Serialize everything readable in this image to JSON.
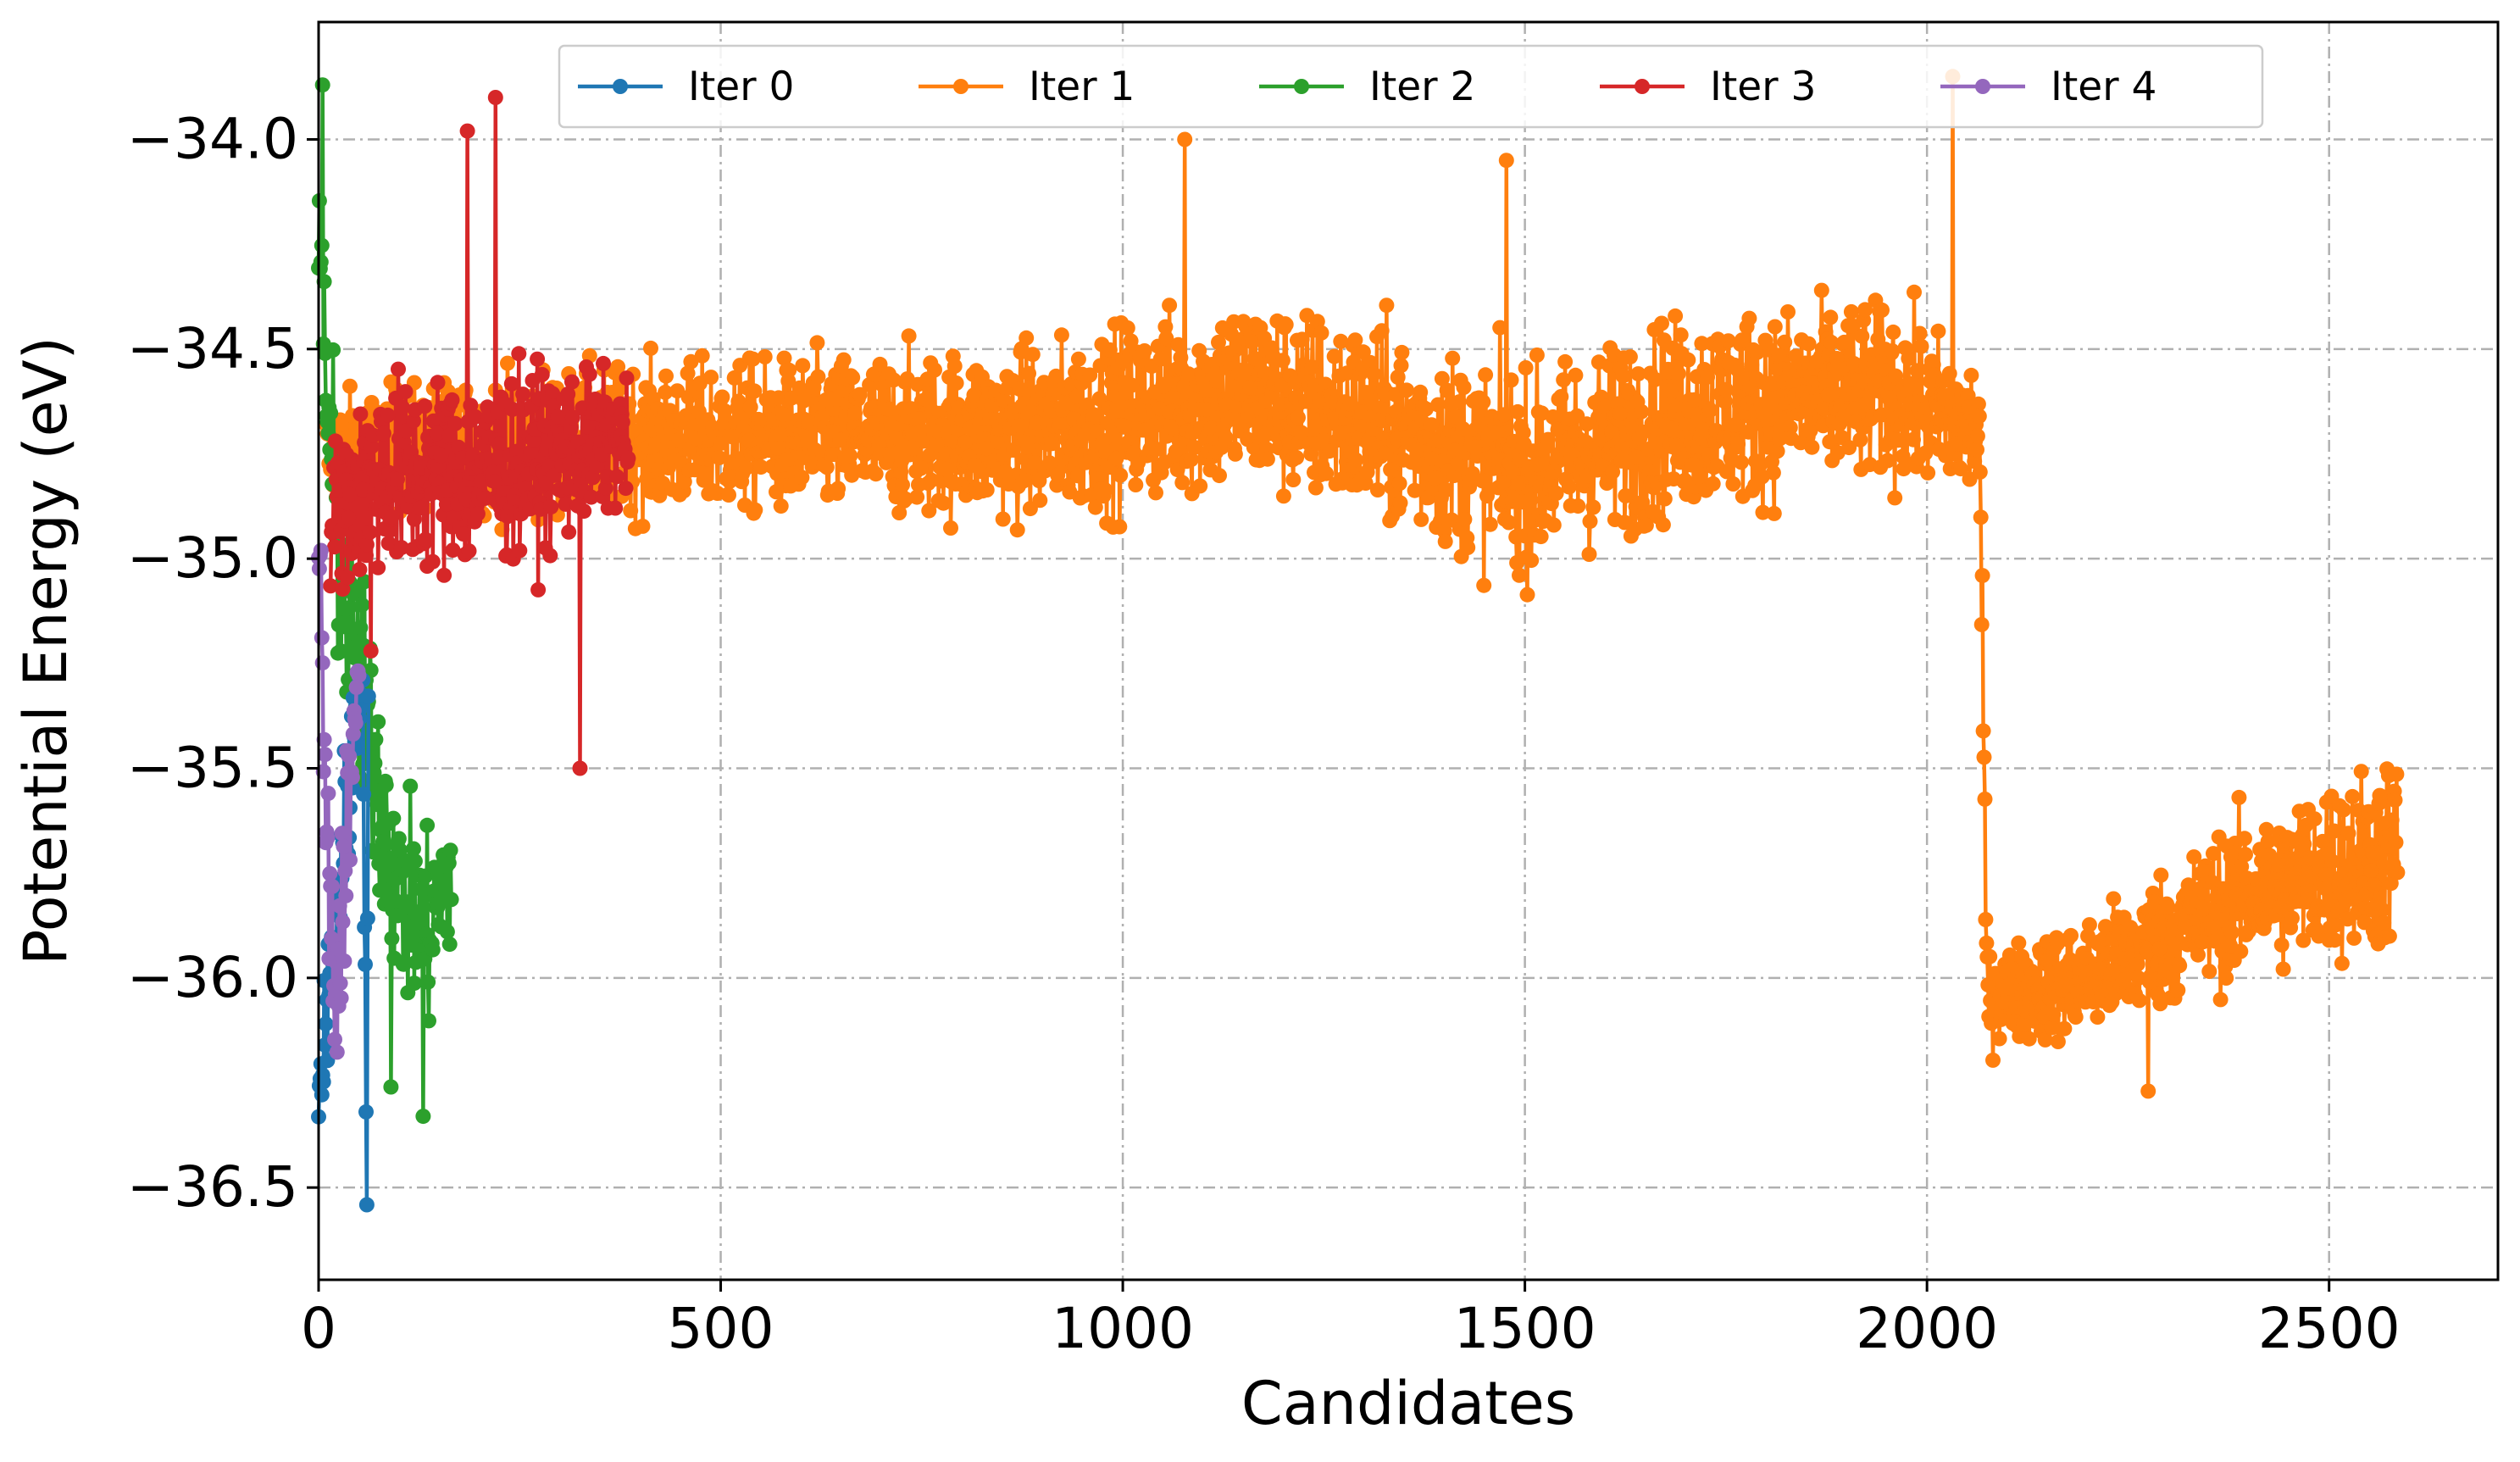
{
  "chart_data": {
    "type": "line",
    "title": "",
    "xlabel": "Candidates",
    "ylabel": "Potential Energy (eV)",
    "xlim": [
      0,
      2710
    ],
    "ylim": [
      -36.72,
      -33.72
    ],
    "x_ticks": [
      0,
      500,
      1000,
      1500,
      2000,
      2500
    ],
    "y_ticks": [
      -36.5,
      -36.0,
      -35.5,
      -35.0,
      -34.5,
      -34.0
    ],
    "x_tick_labels": [
      "0",
      "500",
      "1000",
      "1500",
      "2000",
      "2500"
    ],
    "y_tick_labels": [
      "−36.5",
      "−36.0",
      "−35.5",
      "−35.0",
      "−34.5",
      "−34.0"
    ],
    "grid": true,
    "legend_position": "top-center",
    "series": [
      {
        "name": "Iter 0",
        "color": "#1f77b4",
        "x_range": [
          0,
          62
        ],
        "segments": [
          [
            0,
            -36.3,
            0.12
          ],
          [
            20,
            -35.9,
            0.25
          ],
          [
            40,
            -35.5,
            0.2
          ],
          [
            55,
            -35.25,
            0.15
          ],
          [
            60,
            -36.55,
            0.05
          ],
          [
            62,
            -35.3,
            0.1
          ]
        ]
      },
      {
        "name": "Iter 1",
        "color": "#ff7f0e",
        "x_range": [
          10,
          2585
        ],
        "segments": [
          [
            10,
            -34.75,
            0.15
          ],
          [
            300,
            -34.72,
            0.18
          ],
          [
            900,
            -34.7,
            0.22
          ],
          [
            1150,
            -34.6,
            0.25
          ],
          [
            1350,
            -34.7,
            0.25
          ],
          [
            1500,
            -34.8,
            0.25
          ],
          [
            1700,
            -34.65,
            0.25
          ],
          [
            1950,
            -34.6,
            0.22
          ],
          [
            2065,
            -34.7,
            0.18
          ],
          [
            2075,
            -36.05,
            0.12
          ],
          [
            2200,
            -36.0,
            0.15
          ],
          [
            2400,
            -35.8,
            0.2
          ],
          [
            2585,
            -35.7,
            0.25
          ]
        ],
        "spikes": [
          [
            2032,
            -33.85
          ],
          [
            1077,
            -34.0
          ],
          [
            1477,
            -34.05
          ],
          [
            2275,
            -36.27
          ]
        ]
      },
      {
        "name": "Iter 2",
        "color": "#2ca02c",
        "x_range": [
          0,
          165
        ],
        "segments": [
          [
            0,
            -34.2,
            0.3
          ],
          [
            15,
            -34.8,
            0.35
          ],
          [
            40,
            -35.2,
            0.35
          ],
          [
            70,
            -35.5,
            0.3
          ],
          [
            100,
            -35.8,
            0.25
          ],
          [
            135,
            -35.9,
            0.25
          ],
          [
            165,
            -35.75,
            0.2
          ]
        ],
        "spikes": [
          [
            5,
            -33.87
          ],
          [
            130,
            -36.33
          ],
          [
            90,
            -36.26
          ]
        ]
      },
      {
        "name": "Iter 3",
        "color": "#d62728",
        "x_range": [
          15,
          385
        ],
        "segments": [
          [
            15,
            -34.9,
            0.2
          ],
          [
            80,
            -34.8,
            0.25
          ],
          [
            200,
            -34.8,
            0.25
          ],
          [
            300,
            -34.75,
            0.22
          ],
          [
            385,
            -34.72,
            0.15
          ]
        ],
        "spikes": [
          [
            220,
            -33.9
          ],
          [
            325,
            -35.5
          ],
          [
            185,
            -33.98
          ],
          [
            65,
            -35.22
          ]
        ]
      },
      {
        "name": "Iter 4",
        "color": "#9467bd",
        "x_range": [
          0,
          50
        ],
        "segments": [
          [
            0,
            -34.95,
            0.15
          ],
          [
            12,
            -35.8,
            0.3
          ],
          [
            22,
            -36.1,
            0.2
          ],
          [
            35,
            -35.6,
            0.25
          ],
          [
            50,
            -35.3,
            0.15
          ]
        ]
      }
    ]
  }
}
